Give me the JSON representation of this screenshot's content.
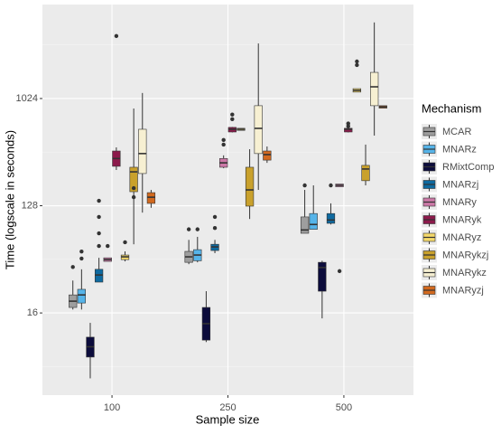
{
  "chart_data": {
    "type": "box",
    "x_label": "Sample size",
    "y_label": "Time (logscale in seconds)",
    "legend_title": "Mechanism",
    "log_y": true,
    "grid": true,
    "legend": "right",
    "categories": [
      "100",
      "250",
      "500"
    ],
    "ylim": [
      3.25,
      6340
    ],
    "yticks": [
      16,
      128,
      1024
    ],
    "series": [
      {
        "name": "MCAR",
        "color": "#9e9e9e",
        "boxes": [
          {
            "low": 17.1,
            "q1": 17.8,
            "median": 20.1,
            "q3": 22.7,
            "high": 30,
            "outliers": [
              39
            ]
          },
          {
            "low": 41.2,
            "q1": 42.7,
            "median": 47.5,
            "q3": 52.8,
            "high": 66,
            "outliers": [
              81
            ]
          },
          {
            "low": 75,
            "q1": 75,
            "median": 80,
            "q3": 103,
            "high": 174,
            "outliers": [
              190
            ]
          }
        ]
      },
      {
        "name": "MNARz",
        "color": "#56b4e9",
        "boxes": [
          {
            "low": 17.1,
            "q1": 19.4,
            "median": 22.7,
            "q3": 25.3,
            "high": 37.3,
            "outliers": [
              46,
              52.7
            ]
          },
          {
            "low": 42.7,
            "q1": 44,
            "median": 49.2,
            "q3": 54.6,
            "high": 70,
            "outliers": [
              81
            ]
          },
          {
            "low": 81,
            "q1": 81,
            "median": 89,
            "q3": 110,
            "high": 190,
            "outliers": []
          }
        ]
      },
      {
        "name": "RMixtComp",
        "color": "#0c0c3c",
        "boxes": [
          {
            "low": 4.5,
            "q1": 6.8,
            "median": 8.3,
            "q3": 10,
            "high": 13.2,
            "outliers": []
          },
          {
            "low": 9.1,
            "q1": 9.45,
            "median": 13,
            "q3": 17.8,
            "high": 24.4,
            "outliers": []
          },
          {
            "low": 14.4,
            "q1": 24.4,
            "median": 38.6,
            "q3": 42.7,
            "high": 44,
            "outliers": []
          }
        ]
      },
      {
        "name": "MNARzj",
        "color": "#0e6aa0",
        "boxes": [
          {
            "low": 29.1,
            "q1": 29.1,
            "median": 33.4,
            "q3": 37.3,
            "high": 46.6,
            "outliers": [
              58.6,
              75,
              103,
              141
            ]
          },
          {
            "low": 51,
            "q1": 53.7,
            "median": 57.6,
            "q3": 60.6,
            "high": 66,
            "outliers": [
              83,
              103
            ]
          },
          {
            "low": 89,
            "q1": 91,
            "median": 97,
            "q3": 110,
            "high": 134,
            "outliers": [
              190
            ]
          }
        ]
      },
      {
        "name": "MNARy",
        "color": "#cc79a7",
        "boxes": [
          {
            "low": 43.5,
            "q1": 43.5,
            "median": 45,
            "q3": 46.6,
            "high": 46.6,
            "outliers": [
              58.6
            ]
          },
          {
            "low": 265,
            "q1": 270,
            "median": 294,
            "q3": 320,
            "high": 340,
            "outliers": [
              419,
              458
            ]
          },
          {
            "low": 185,
            "q1": 185,
            "median": 190,
            "q3": 195,
            "high": 195,
            "outliers": [
              36
            ]
          }
        ]
      },
      {
        "name": "MNARyk",
        "color": "#8c1a4b",
        "boxes": [
          {
            "low": 256,
            "q1": 275,
            "median": 320,
            "q3": 370,
            "high": 397,
            "outliers": [
              3440
            ]
          },
          {
            "low": 530,
            "q1": 535,
            "median": 564,
            "q3": 585,
            "high": 590,
            "outliers": [
              686,
              750
            ]
          },
          {
            "low": 530,
            "q1": 535,
            "median": 564,
            "q3": 575,
            "high": 575,
            "outliers": [
              599,
              631
            ]
          }
        ]
      },
      {
        "name": "MNARyz",
        "color": "#f4d96c",
        "boxes": [
          {
            "low": 43.5,
            "q1": 45,
            "median": 47.5,
            "q3": 49.2,
            "high": 52.8,
            "outliers": [
              63
            ]
          },
          {
            "low": 552,
            "q1": 552,
            "median": 564,
            "q3": 575,
            "high": 575,
            "outliers": []
          },
          {
            "low": 1160,
            "q1": 1160,
            "median": 1200,
            "q3": 1240,
            "high": 1240,
            "outliers": [
              1960,
              2100
            ]
          }
        ]
      },
      {
        "name": "MNARykzj",
        "color": "#c9a12c",
        "boxes": [
          {
            "low": 60.6,
            "q1": 168,
            "median": 247,
            "q3": 270,
            "high": 844,
            "outliers": [
              151,
              180
            ]
          },
          {
            "low": 99,
            "q1": 127,
            "median": 174,
            "q3": 270,
            "high": 383,
            "outliers": []
          },
          {
            "low": 190,
            "q1": 208,
            "median": 261,
            "q3": 280,
            "high": 419,
            "outliers": []
          }
        ]
      },
      {
        "name": "MNARykz",
        "color": "#f7f0d2",
        "boxes": [
          {
            "low": 112,
            "q1": 239,
            "median": 352,
            "q3": 564,
            "high": 1140,
            "outliers": []
          },
          {
            "low": 174,
            "q1": 352,
            "median": 574,
            "q3": 891,
            "high": 2980,
            "outliers": []
          },
          {
            "low": 499,
            "q1": 891,
            "median": 1285,
            "q3": 1700,
            "high": 4480,
            "outliers": []
          }
        ]
      },
      {
        "name": "MNARyzj",
        "color": "#d2691e",
        "boxes": [
          {
            "low": 123,
            "q1": 134,
            "median": 151,
            "q3": 165,
            "high": 174,
            "outliers": []
          },
          {
            "low": 294,
            "q1": 310,
            "median": 345,
            "q3": 370,
            "high": 404,
            "outliers": []
          },
          {
            "low": 850,
            "q1": 850,
            "median": 870,
            "q3": 891,
            "high": 891,
            "outliers": []
          }
        ]
      }
    ]
  }
}
